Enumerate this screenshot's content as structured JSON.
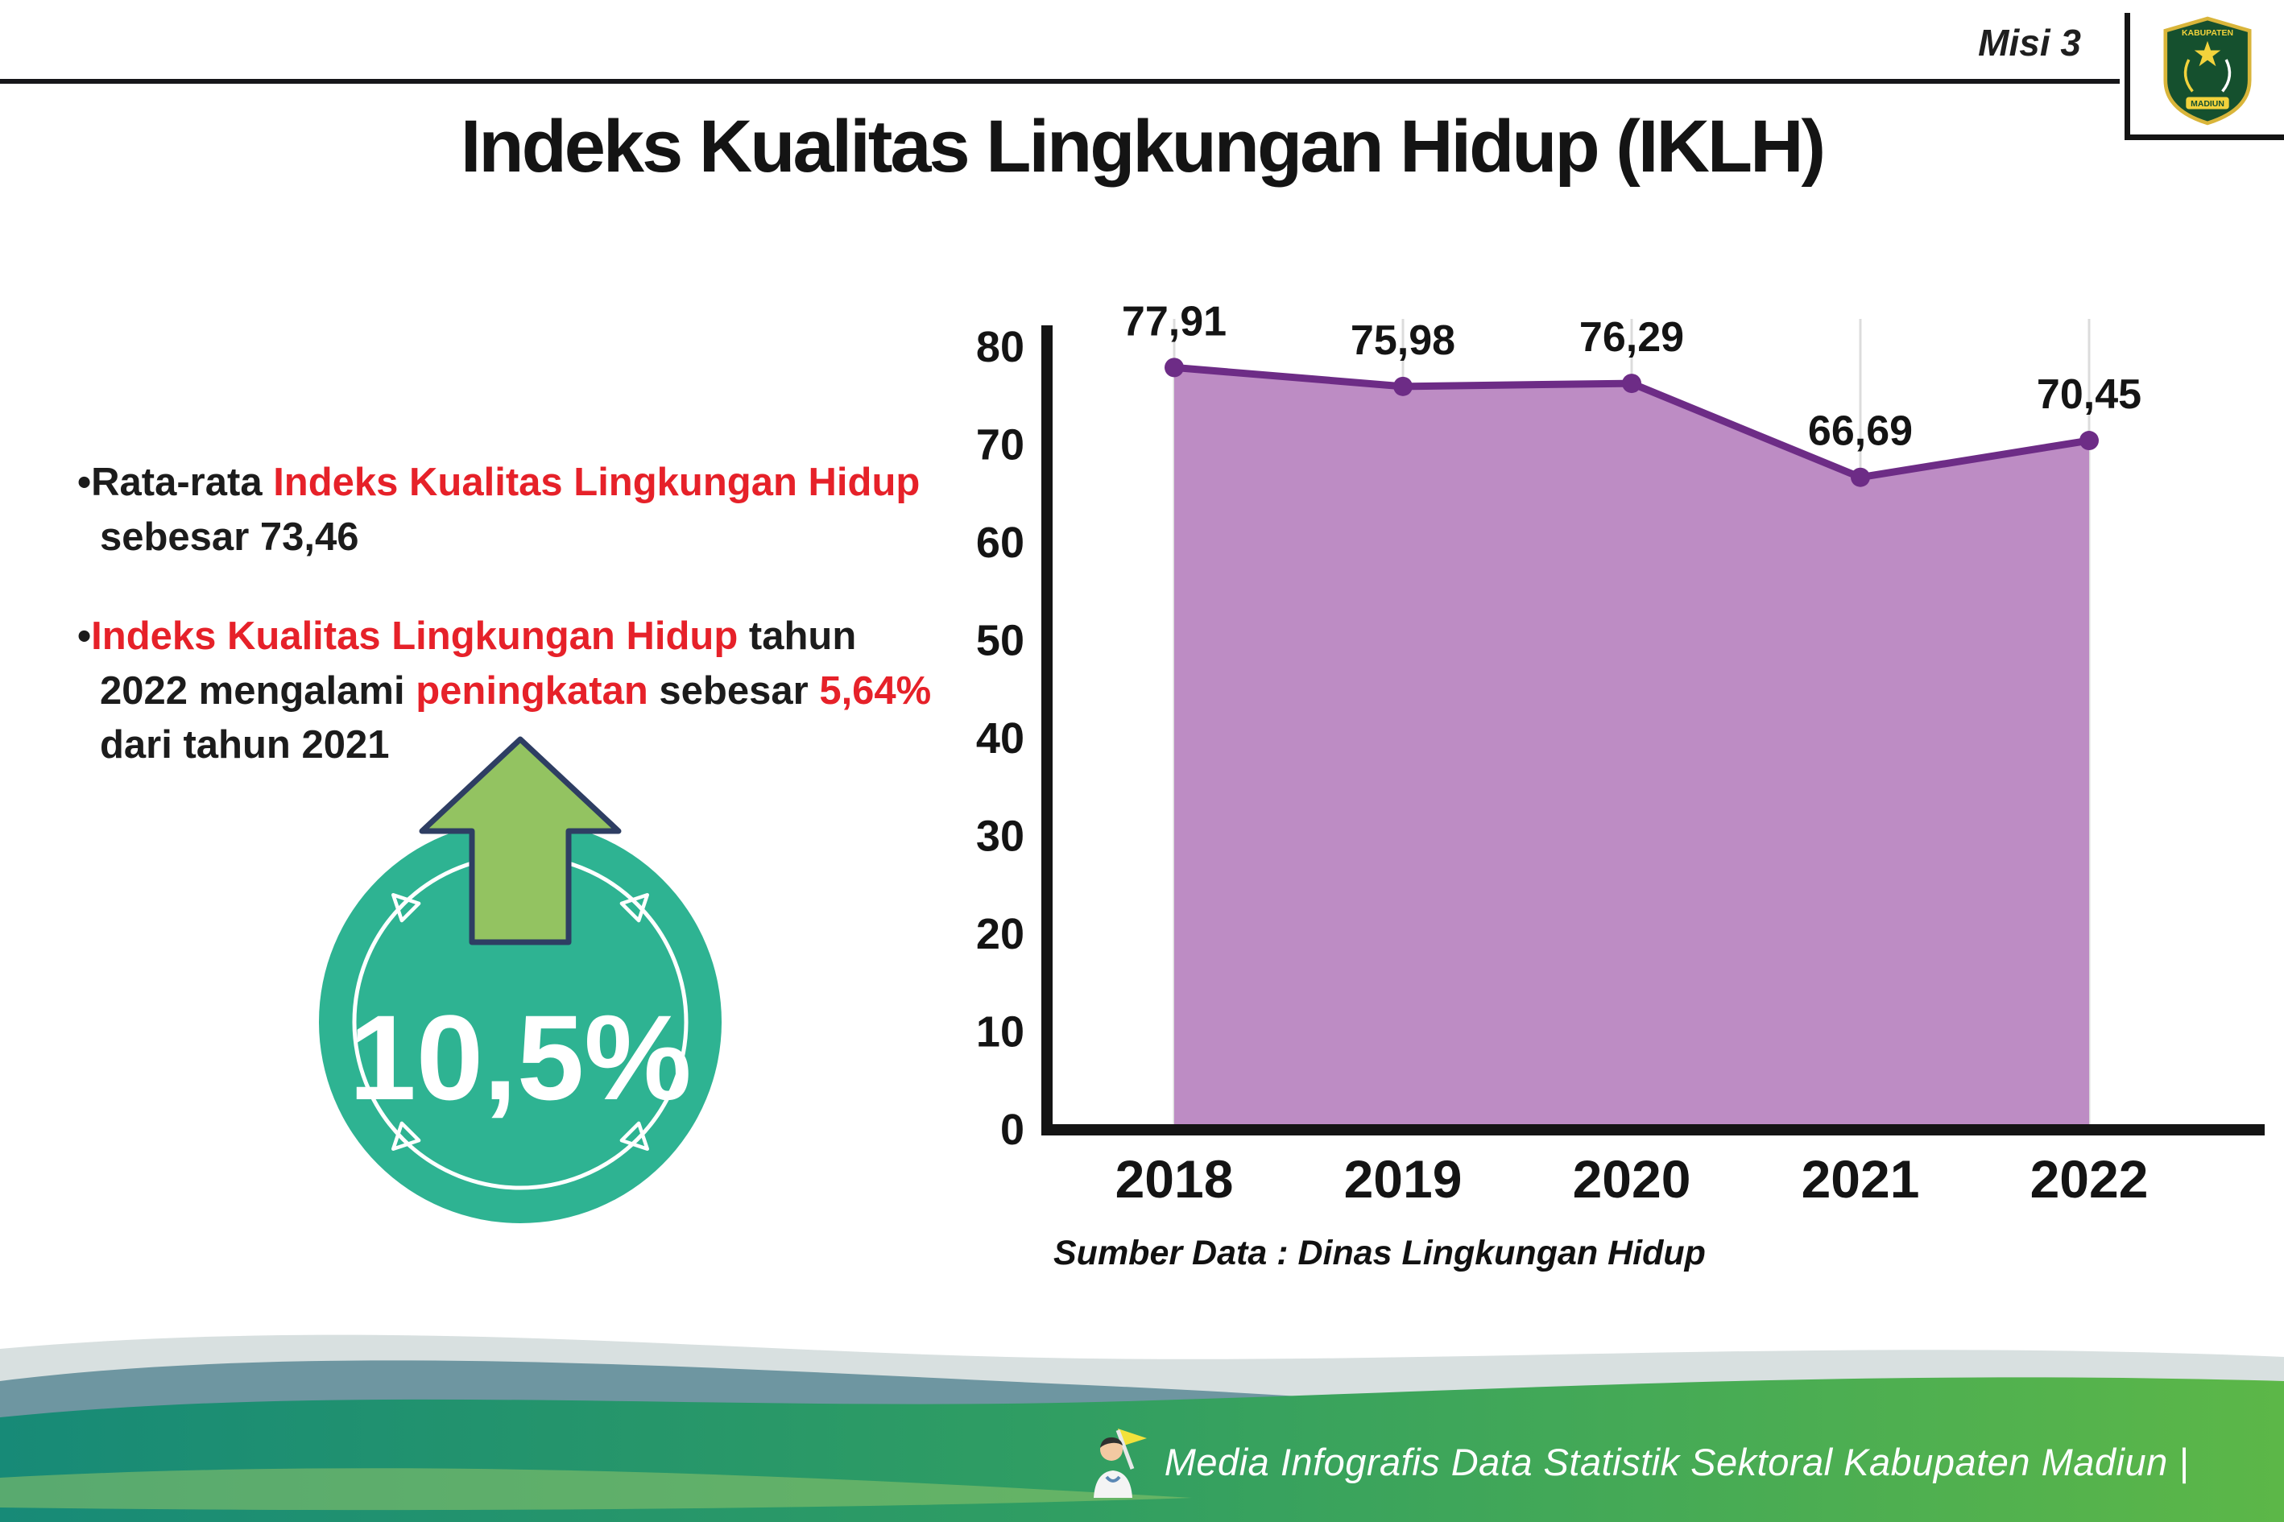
{
  "header": {
    "misi": "Misi 3"
  },
  "logo": {
    "title": "KABUPATEN",
    "subtitle": "MADIUN"
  },
  "title": "Indeks Kualitas Lingkungan Hidup (IKLH)",
  "bullets": {
    "marker": "•",
    "b1": {
      "p1": "Rata-rata ",
      "p2": "Indeks Kualitas Lingkungan Hidup",
      "p3": " sebesar 73,46"
    },
    "b2": {
      "p1": "Indeks Kualitas Lingkungan Hidup",
      "p2": " tahun 2022 mengalami ",
      "p3": "peningkatan",
      "p4": " sebesar ",
      "p5": "5,64%",
      "p6": " dari tahun 2021"
    }
  },
  "badge": {
    "value": "10,5%"
  },
  "chart_data": {
    "type": "area",
    "title": "",
    "categories": [
      "2018",
      "2019",
      "2020",
      "2021",
      "2022"
    ],
    "values": [
      77.91,
      75.98,
      76.29,
      66.69,
      70.45
    ],
    "value_labels": [
      "77,91",
      "75,98",
      "76,29",
      "66,69",
      "70,45"
    ],
    "xlabel": "",
    "ylabel": "",
    "ylim": [
      0,
      80
    ],
    "ytick_step": 10,
    "grid": "vertical-light",
    "legend": "none",
    "line_color": "#6d2c86",
    "fill_color": "#bd8cc4",
    "source": "Sumber Data : Dinas Lingkungan Hidup"
  },
  "footer": {
    "text": "Media Infografis Data Statistik Sektoral Kabupaten Madiun |"
  },
  "colors": {
    "red": "#e62129",
    "teal": "#2eb392",
    "arrow_green": "#93c361",
    "arrow_outline": "#2e3e63",
    "purple_line": "#6d2c86",
    "purple_fill": "#bd8cc4"
  }
}
